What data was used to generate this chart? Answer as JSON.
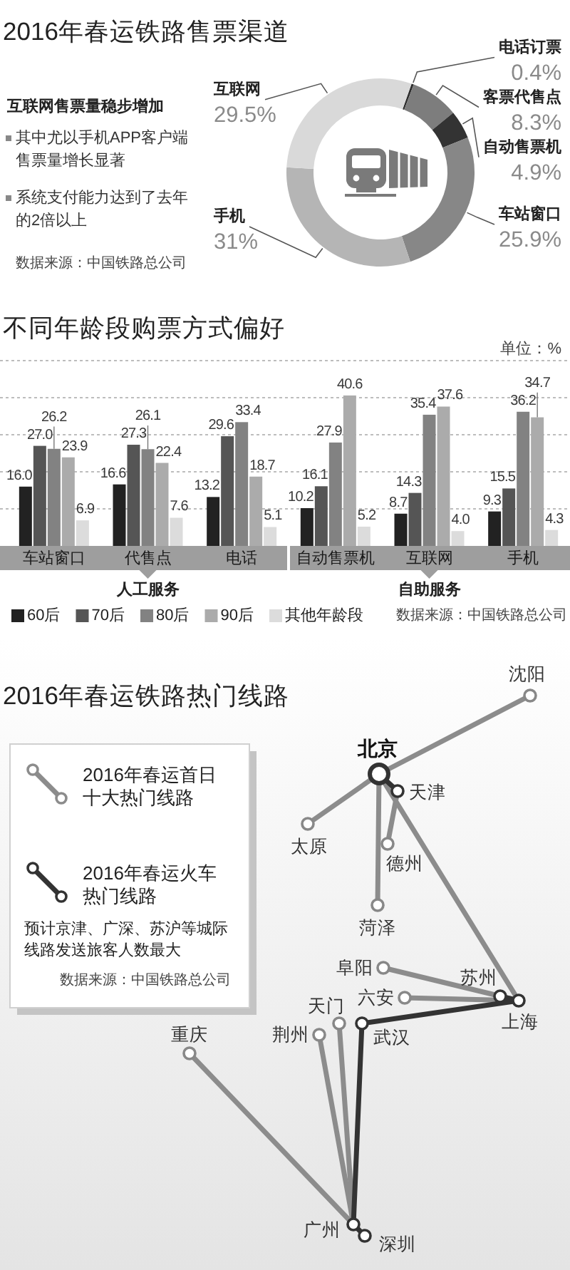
{
  "chart_data": [
    {
      "type": "donut",
      "title": "2016年春运铁路售票渠道",
      "subtitle": "互联网售票量稳步增加",
      "categories": [
        "电话订票",
        "客票代售点",
        "自动售票机",
        "车站窗口",
        "手机",
        "互联网"
      ],
      "values": [
        0.4,
        8.3,
        4.9,
        25.9,
        31,
        29.5
      ],
      "value_labels": [
        "0.4%",
        "8.3%",
        "4.9%",
        "25.9%",
        "31%",
        "29.5%"
      ],
      "colors": [
        "#2e2e2e",
        "#7d7d7d",
        "#333333",
        "#878787",
        "#b5b5b5",
        "#d9d9d9"
      ],
      "annotations": [
        "其中尤以手机APP客户端售票量增长显著",
        "系统支付能力达到了去年的2倍以上",
        "数据来源：中国铁路总公司"
      ]
    },
    {
      "type": "bar",
      "title": "不同年龄段购票方式偏好",
      "ylabel": "单位：%",
      "categories": [
        "车站窗口",
        "代售点",
        "电话",
        "自动售票机",
        "互联网",
        "手机"
      ],
      "series": [
        {
          "name": "60后",
          "color": "#222222",
          "values": [
            16.0,
            16.6,
            13.2,
            10.2,
            8.7,
            9.3
          ],
          "value_labels": [
            "16.0",
            "16.6",
            "13.2",
            "10.2",
            "8.7",
            "9.3"
          ]
        },
        {
          "name": "70后",
          "color": "#555555",
          "values": [
            27.0,
            27.3,
            29.6,
            16.1,
            14.3,
            15.5
          ],
          "value_labels": [
            "27.0",
            "27.3",
            "29.6",
            "16.1",
            "14.3",
            "15.5"
          ]
        },
        {
          "name": "80后",
          "color": "#828282",
          "values": [
            26.2,
            26.1,
            33.4,
            27.9,
            35.4,
            36.2
          ],
          "value_labels": [
            "26.2",
            "26.1",
            "33.4",
            "27.9",
            "35.4",
            "36.2"
          ]
        },
        {
          "name": "90后",
          "color": "#ababab",
          "values": [
            23.9,
            22.4,
            18.7,
            40.6,
            37.6,
            34.7
          ],
          "value_labels": [
            "23.9",
            "22.4",
            "18.7",
            "40.6",
            "37.6",
            "34.7"
          ]
        },
        {
          "name": "其他年龄段",
          "color": "#dcdcdc",
          "values": [
            6.9,
            7.6,
            5.1,
            5.2,
            4.0,
            4.3
          ],
          "value_labels": [
            "6.9",
            "7.6",
            "5.1",
            "5.2",
            "4.0",
            "4.3"
          ]
        }
      ],
      "ylim": [
        0,
        50
      ],
      "yticks": [
        {
          "value": 10,
          "label": null
        },
        {
          "value": 20,
          "label": null
        },
        {
          "value": 30,
          "label": null
        },
        {
          "value": 40,
          "label": null
        },
        {
          "value": 50,
          "label": null
        }
      ],
      "grid": "y",
      "tick_labels": "x",
      "legend": "bottom",
      "annotations": [
        "人工服务",
        "自助服务",
        "数据来源：中国铁路总公司"
      ]
    },
    {
      "type": "other",
      "title": "2016年春运铁路热门线路",
      "annotations": [
        "2016年春运首日十大热门线路",
        "2016年春运火车热门线路",
        "预计京津、广深、苏沪等城际线路发送旅客人数最大",
        "数据来源：中国铁路总公司",
        "沈阳",
        "北京",
        "天津",
        "太原",
        "德州",
        "菏泽",
        "阜阳",
        "苏州",
        "六安",
        "上海",
        "天门",
        "武汉",
        "荆州",
        "重庆",
        "广州",
        "深圳"
      ]
    }
  ]
}
